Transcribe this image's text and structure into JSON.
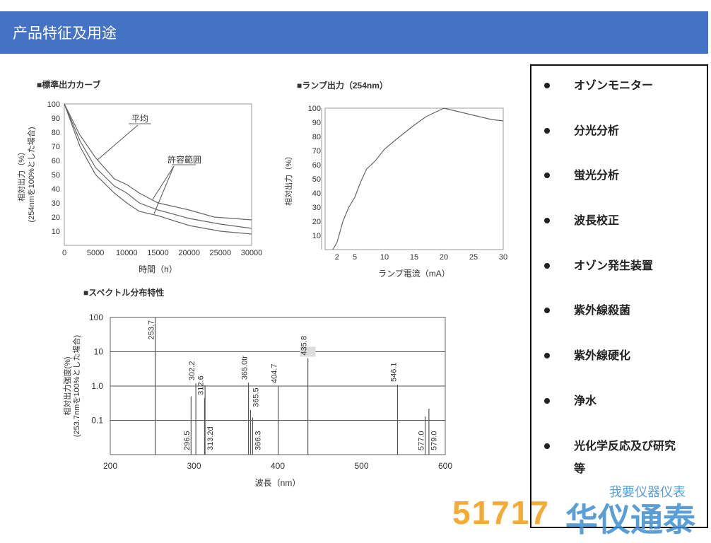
{
  "header": {
    "title": "产品特征及用途"
  },
  "features": [
    "オゾンモニター",
    "分光分析",
    "蛍光分析",
    "波長校正",
    "オゾン発生装置",
    "紫外線殺菌",
    "紫外線硬化",
    "浄水",
    "光化学反応及び研究等"
  ],
  "watermark": {
    "number": "51717",
    "brand": "华仪通泰",
    "slogan": "我要仪器仪表"
  },
  "chart_data": [
    {
      "type": "line",
      "title": "■標準出力カーブ",
      "xlabel": "時間（h）",
      "ylabel": "相対出力（%）",
      "ylabel2": "(254nmを100%とした場合)",
      "xlim": [
        0,
        30000
      ],
      "ylim": [
        0,
        100
      ],
      "xticks": [
        0,
        5000,
        10000,
        15000,
        20000,
        25000,
        30000
      ],
      "yticks": [
        10,
        20,
        30,
        40,
        50,
        60,
        70,
        80,
        90,
        100
      ],
      "annotations": [
        "平均",
        "許容範囲"
      ],
      "series": [
        {
          "x": [
            0,
            2500,
            5000,
            8000,
            10000,
            12000,
            15000,
            20000,
            24000,
            30000
          ],
          "y": [
            100,
            78,
            62,
            47,
            43,
            37,
            30,
            25,
            20,
            18
          ]
        },
        {
          "x": [
            0,
            2500,
            5000,
            8000,
            10000,
            12000,
            15000,
            20000,
            25000,
            30000
          ],
          "y": [
            100,
            74,
            55,
            42,
            37,
            30,
            25,
            19,
            15,
            12
          ]
        },
        {
          "x": [
            0,
            2500,
            5000,
            8000,
            10000,
            12000,
            15000,
            20000,
            25000,
            30000
          ],
          "y": [
            100,
            70,
            50,
            37,
            30,
            24,
            21,
            14,
            10,
            8
          ]
        }
      ]
    },
    {
      "type": "line",
      "title": "■ランプ出力（254nm）",
      "xlabel": "ランプ電流（mA）",
      "ylabel": "相対出力（%）",
      "xlim": [
        0,
        30
      ],
      "ylim": [
        0,
        100
      ],
      "xticks": [
        2,
        5,
        10,
        15,
        20,
        25,
        30
      ],
      "yticks": [
        10,
        20,
        30,
        40,
        50,
        60,
        70,
        80,
        90,
        100
      ],
      "series": [
        {
          "x": [
            1.3,
            2,
            3,
            4,
            5,
            6,
            7,
            8.5,
            10,
            12,
            15,
            17,
            20,
            22,
            25,
            28,
            30
          ],
          "y": [
            0,
            5,
            20,
            30,
            37,
            48,
            57,
            63,
            71,
            78,
            88,
            94,
            100,
            98,
            95,
            92,
            91
          ]
        }
      ]
    },
    {
      "type": "bar",
      "title": "■スペクトル分布特性",
      "xlabel": "波長（nm）",
      "ylabel": "相対出力強度(%)",
      "ylabel2": "(253.7nmを100%とした場合)",
      "xlim": [
        200,
        600
      ],
      "ylim": [
        0.01,
        100
      ],
      "yscale": "log",
      "xticks": [
        200,
        300,
        400,
        500,
        600
      ],
      "yticks": [
        "100",
        "10",
        "1.0",
        "0.1"
      ],
      "lines": [
        {
          "label": "253.7",
          "x": 253.7,
          "y": 100,
          "pos": "top"
        },
        {
          "label": "296.5",
          "x": 296.5,
          "y": 0.5,
          "pos": "bottom"
        },
        {
          "label": "302.2",
          "x": 302.2,
          "y": 1.2,
          "pos": "top"
        },
        {
          "label": "312.6",
          "x": 312.6,
          "y": 0.45,
          "pos": "top"
        },
        {
          "label": "313.2d",
          "x": 313.2,
          "y": 1.05,
          "pos": "bottom"
        },
        {
          "label": "365.0tr",
          "x": 365.0,
          "y": 1.25,
          "pos": "top"
        },
        {
          "label": "365.5",
          "x": 367.5,
          "y": 0.2,
          "pos": "top"
        },
        {
          "label": "366.3",
          "x": 370,
          "y": 0.12,
          "pos": "bottom"
        },
        {
          "label": "404.7",
          "x": 400.5,
          "y": 1.0,
          "pos": "top"
        },
        {
          "label": "435.8",
          "x": 436,
          "y": 6.5,
          "pos": "top"
        },
        {
          "label": "546.1",
          "x": 543,
          "y": 1.1,
          "pos": "top"
        },
        {
          "label": "577.0",
          "x": 576,
          "y": 0.13,
          "pos": "bottom"
        },
        {
          "label": "579.0",
          "x": 580.5,
          "y": 0.22,
          "pos": "bottom"
        }
      ]
    }
  ]
}
